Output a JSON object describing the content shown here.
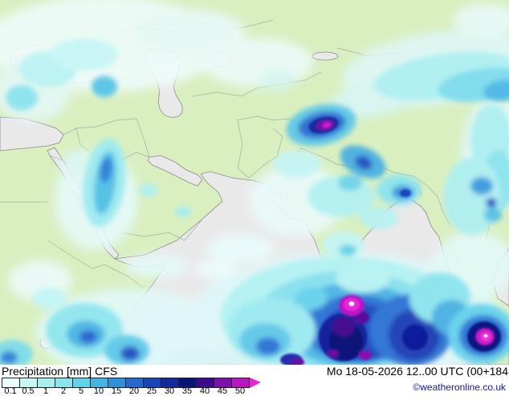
{
  "legend": {
    "title": "Precipitation",
    "unit": "[mm]",
    "model": "CFS",
    "datetime": "Mo 18-05-2026 12..00 UTC (00+184",
    "copyright": "©weatheronline.co.uk",
    "ticks": [
      "0.1",
      "0.5",
      "1",
      "2",
      "5",
      "10",
      "15",
      "20",
      "25",
      "30",
      "35",
      "40",
      "45",
      "50"
    ],
    "colors": [
      "#e8feff",
      "#c8f8f6",
      "#a8f0f0",
      "#88e6ee",
      "#62d2ec",
      "#44b4e4",
      "#2e90dc",
      "#2468d0",
      "#1a44bc",
      "#122a9e",
      "#0a1478",
      "#3c0a8c",
      "#7c10a8",
      "#b816c0"
    ],
    "arrow_color": "#e824d4"
  },
  "map": {
    "land_color": "#d9efc0",
    "sea_color": "#e9e9e9",
    "coast_color": "#8a8a8a",
    "border_color": "#a0a0a0",
    "precipitation_blobs": [
      [
        130,
        55,
        150,
        60,
        0,
        "#eefcfa",
        "soft"
      ],
      [
        40,
        112,
        48,
        40,
        0,
        "#e4f8f6",
        "soft"
      ],
      [
        235,
        40,
        70,
        28,
        0,
        "#e8fafa",
        "soft"
      ],
      [
        320,
        78,
        70,
        30,
        0,
        "#eefbfb",
        "soft"
      ],
      [
        345,
        100,
        24,
        12,
        0,
        "#d4f6f6",
        "soft"
      ],
      [
        545,
        85,
        120,
        45,
        -8,
        "#dff7f7",
        "soft"
      ],
      [
        470,
        122,
        60,
        22,
        -12,
        "#d8f6f6",
        "soft"
      ],
      [
        605,
        25,
        40,
        20,
        0,
        "#e8fafa",
        "soft"
      ],
      [
        615,
        190,
        40,
        70,
        0,
        "#e2f8f8",
        "soft"
      ],
      [
        120,
        250,
        52,
        62,
        0,
        "#e6fafa",
        "soft"
      ],
      [
        100,
        205,
        24,
        18,
        0,
        "#def7f7",
        "soft"
      ],
      [
        300,
        310,
        42,
        18,
        0,
        "#eafcfc",
        "soft"
      ],
      [
        270,
        336,
        26,
        12,
        0,
        "#eefdfd",
        "soft"
      ],
      [
        195,
        332,
        40,
        15,
        0,
        "#e4f9f9",
        "soft"
      ],
      [
        370,
        250,
        60,
        45,
        0,
        "#eafbfb",
        "soft"
      ],
      [
        430,
        400,
        195,
        85,
        0,
        "#ddf8f8",
        "soft"
      ],
      [
        160,
        415,
        115,
        55,
        0,
        "#e0f9f9",
        "soft"
      ],
      [
        50,
        350,
        40,
        25,
        0,
        "#ecfbfb",
        "soft"
      ],
      [
        590,
        330,
        50,
        42,
        0,
        "#e4f9f9",
        "soft"
      ],
      [
        240,
        448,
        40,
        14,
        0,
        "#daf6f6",
        "soft"
      ],
      [
        295,
        450,
        30,
        10,
        0,
        "#d8f5f5",
        "soft"
      ],
      [
        555,
        95,
        90,
        28,
        -8,
        "#aef0f2",
        "mid"
      ],
      [
        600,
        106,
        55,
        20,
        -8,
        "#7edcec",
        "mid"
      ],
      [
        626,
        113,
        24,
        13,
        -8,
        "#4cb8e6",
        "mid"
      ],
      [
        612,
        175,
        26,
        45,
        0,
        "#aeeff1",
        "mid"
      ],
      [
        621,
        225,
        20,
        38,
        0,
        "#8ce4ee",
        "mid"
      ],
      [
        60,
        86,
        36,
        22,
        0,
        "#bcf3f3",
        "mid"
      ],
      [
        105,
        68,
        42,
        20,
        0,
        "#c8f6f6",
        "mid"
      ],
      [
        27,
        122,
        20,
        16,
        0,
        "#8ce4ee",
        "mid"
      ],
      [
        130,
        108,
        16,
        13,
        0,
        "#56c4e7",
        "mid"
      ],
      [
        130,
        228,
        26,
        55,
        8,
        "#9ceaf0",
        "mid"
      ],
      [
        131,
        228,
        13,
        40,
        8,
        "#50c0e6",
        "mid"
      ],
      [
        132,
        212,
        7,
        16,
        8,
        "#2a7ad8",
        "mid"
      ],
      [
        185,
        237,
        12,
        8,
        0,
        "#b0f0f0",
        "mid"
      ],
      [
        228,
        264,
        10,
        7,
        0,
        "#a6eef0",
        "mid"
      ],
      [
        370,
        205,
        30,
        17,
        0,
        "#c4f5f5",
        "mid"
      ],
      [
        425,
        245,
        42,
        26,
        0,
        "#b4f1f1",
        "mid"
      ],
      [
        436,
        228,
        15,
        10,
        0,
        "#6ed4ea",
        "mid"
      ],
      [
        497,
        237,
        28,
        19,
        0,
        "#8ce4ee",
        "mid"
      ],
      [
        502,
        240,
        14,
        9,
        0,
        "#3a9ade",
        "mid"
      ],
      [
        472,
        272,
        24,
        14,
        0,
        "#b8f2f2",
        "mid"
      ],
      [
        428,
        305,
        26,
        16,
        0,
        "#c4f5f5",
        "mid"
      ],
      [
        433,
        312,
        11,
        7,
        0,
        "#66d2ec",
        "mid"
      ],
      [
        588,
        245,
        36,
        48,
        0,
        "#aeeff1",
        "mid"
      ],
      [
        600,
        232,
        14,
        11,
        0,
        "#3a9ade",
        "mid"
      ],
      [
        614,
        268,
        11,
        9,
        0,
        "#54c2e6",
        "mid"
      ],
      [
        612,
        253,
        7,
        6,
        0,
        "#2254c6",
        "mid"
      ],
      [
        400,
        156,
        44,
        25,
        -12,
        "#5ec8e8",
        "mid"
      ],
      [
        401,
        156,
        30,
        16,
        -12,
        "#2a6ad2",
        "mid"
      ],
      [
        452,
        202,
        30,
        18,
        25,
        "#4ab0e2",
        "mid"
      ],
      [
        453,
        203,
        11,
        8,
        25,
        "#2250c4",
        "mid"
      ],
      [
        425,
        395,
        150,
        75,
        0,
        "#b4f2f3",
        "mid"
      ],
      [
        432,
        400,
        115,
        62,
        0,
        "#86e0ee",
        "mid"
      ],
      [
        440,
        405,
        88,
        52,
        0,
        "#4cb4e4",
        "mid"
      ],
      [
        446,
        410,
        66,
        42,
        0,
        "#2a72d4",
        "mid"
      ],
      [
        450,
        415,
        50,
        36,
        0,
        "#1c46c0",
        "mid"
      ],
      [
        512,
        412,
        52,
        45,
        0,
        "#2a72d4",
        "mid"
      ],
      [
        516,
        418,
        32,
        32,
        0,
        "#1a3ab4",
        "mid"
      ],
      [
        548,
        372,
        38,
        32,
        0,
        "#8ce4ee",
        "mid"
      ],
      [
        562,
        396,
        24,
        22,
        0,
        "#4ab0e2",
        "mid"
      ],
      [
        338,
        412,
        55,
        40,
        0,
        "#9ceaf0",
        "mid"
      ],
      [
        330,
        425,
        32,
        22,
        0,
        "#5ec8e8",
        "mid"
      ],
      [
        334,
        432,
        15,
        11,
        0,
        "#2a72d4",
        "mid"
      ],
      [
        388,
        372,
        20,
        14,
        0,
        "#66d2ec",
        "mid"
      ],
      [
        452,
        347,
        34,
        18,
        0,
        "#b8f2f2",
        "mid"
      ],
      [
        105,
        412,
        48,
        34,
        0,
        "#90e6ee",
        "mid"
      ],
      [
        107,
        417,
        24,
        17,
        0,
        "#48b4e4",
        "mid"
      ],
      [
        110,
        420,
        11,
        8,
        0,
        "#2560ce",
        "mid"
      ],
      [
        158,
        437,
        28,
        19,
        0,
        "#5ec8e8",
        "mid"
      ],
      [
        162,
        441,
        12,
        9,
        0,
        "#2250c4",
        "mid"
      ],
      [
        15,
        442,
        26,
        18,
        0,
        "#7edcec",
        "mid"
      ],
      [
        11,
        446,
        11,
        8,
        0,
        "#2e80da",
        "mid"
      ],
      [
        62,
        372,
        22,
        13,
        0,
        "#c4f5f5",
        "mid"
      ],
      [
        600,
        417,
        42,
        38,
        0,
        "#66d2ec",
        "mid"
      ],
      [
        602,
        419,
        30,
        26,
        0,
        "#2a72d4",
        "mid"
      ],
      [
        403,
        156,
        19,
        10,
        -12,
        "#1a2aa0",
        "core"
      ],
      [
        405,
        156,
        11,
        6,
        -12,
        "#7a10a8",
        "core"
      ],
      [
        407,
        156,
        5.5,
        3.5,
        -12,
        "#cc1ecc",
        "core"
      ],
      [
        427,
        421,
        30,
        30,
        0,
        "#14249c",
        "core"
      ],
      [
        431,
        426,
        21,
        23,
        0,
        "#0a1278",
        "core"
      ],
      [
        428,
        408,
        14,
        12,
        0,
        "#440890",
        "core"
      ],
      [
        450,
        396,
        10,
        8,
        0,
        "#5a0a9c",
        "core"
      ],
      [
        438,
        381,
        16,
        13,
        0,
        "#b814c4",
        "core"
      ],
      [
        438,
        380,
        10,
        8,
        0,
        "#ea28dc",
        "core"
      ],
      [
        517,
        421,
        16,
        16,
        0,
        "#101e9a",
        "core"
      ],
      [
        505,
        241,
        7,
        5,
        0,
        "#1c46c0",
        "core"
      ],
      [
        455,
        443,
        8,
        6,
        0,
        "#8810b0",
        "core"
      ],
      [
        415,
        441,
        7,
        5,
        0,
        "#6a0ca0",
        "core"
      ],
      [
        363,
        449,
        14,
        8,
        0,
        "#2a2ab0",
        "core"
      ],
      [
        371,
        452,
        8,
        5,
        0,
        "#6a0ca0",
        "core"
      ],
      [
        603,
        420,
        21,
        19,
        0,
        "#101884",
        "core"
      ],
      [
        604,
        420,
        11,
        10,
        0,
        "#cc1ad0",
        "core"
      ],
      [
        605,
        420,
        6,
        5.5,
        0,
        "#f238e2",
        "core"
      ],
      [
        438,
        379,
        3.5,
        3,
        0,
        "#ffffff",
        "dot"
      ],
      [
        605,
        419,
        2.5,
        2,
        0,
        "#ffffff",
        "dot"
      ]
    ]
  }
}
